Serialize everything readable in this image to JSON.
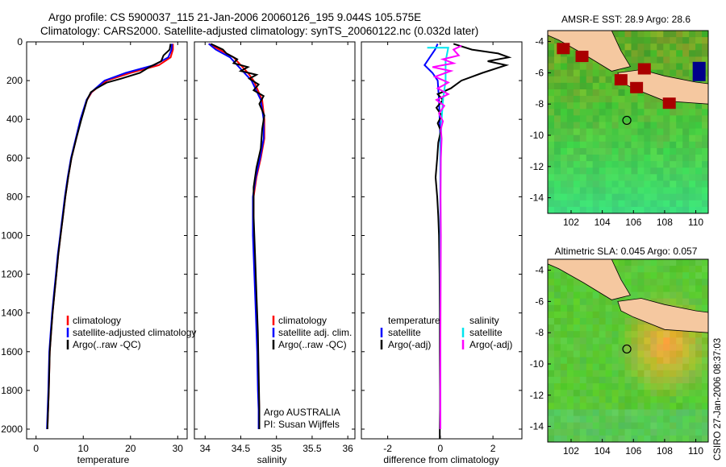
{
  "header": {
    "line1": "Argo profile: CS 5900037_115 21-Jan-2006 20060126_195 9.044S 105.575E",
    "line2": "Climatology: CARS2000. Satellite-adjusted climatology: synTS_20060122.nc (0.032d later)"
  },
  "side_stamp": "CSIRO 27-Jan-2006 08:37:03",
  "colors": {
    "climatology": "#ff0000",
    "satellite": "#0000ff",
    "argo": "#000000",
    "satellite_diff": "#00e5ee",
    "argo_adj_diff": "#ff00ff",
    "land": "#f5c8a0",
    "ocean_green": "#33cc33"
  },
  "chart_data": [
    {
      "type": "line",
      "id": "temperature",
      "xlabel": "temperature",
      "ylabel": "",
      "xlim": [
        -2,
        32
      ],
      "ylim": [
        2050,
        0
      ],
      "xticks": [
        0,
        10,
        20,
        30
      ],
      "yticks": [
        0,
        200,
        400,
        600,
        800,
        1000,
        1200,
        1400,
        1600,
        1800,
        2000
      ],
      "legend": [
        "climatology",
        "satellite-adjusted climatology",
        "Argo(..raw -QC)"
      ],
      "series": [
        {
          "name": "climatology",
          "color": "#ff0000",
          "x": [
            29.0,
            29.0,
            28.5,
            26,
            20,
            15,
            12.8,
            11.8,
            10.8,
            9.5,
            8.5,
            7.5,
            6.8,
            6.2,
            5.7,
            5.2,
            4.7,
            4.3,
            3.9,
            3.5,
            3.2,
            2.9,
            2.7,
            2.4
          ],
          "y": [
            10,
            40,
            80,
            120,
            160,
            200,
            240,
            260,
            300,
            400,
            500,
            600,
            700,
            800,
            900,
            1000,
            1100,
            1200,
            1300,
            1400,
            1500,
            1600,
            1800,
            2000
          ]
        },
        {
          "name": "satellite-adjusted climatology",
          "color": "#0000ff",
          "x": [
            28.8,
            28.7,
            28.0,
            25,
            19,
            14.5,
            12.6,
            11.7,
            10.7,
            9.4,
            8.4,
            7.4,
            6.7,
            6.1,
            5.6,
            5.1,
            4.6,
            4.2,
            3.8,
            3.4,
            3.1,
            2.8,
            2.6,
            2.3
          ],
          "y": [
            10,
            40,
            80,
            120,
            160,
            200,
            240,
            260,
            300,
            400,
            500,
            600,
            700,
            800,
            900,
            1000,
            1100,
            1200,
            1300,
            1400,
            1500,
            1600,
            1800,
            2000
          ]
        },
        {
          "name": "Argo(..raw -QC)",
          "color": "#000000",
          "x": [
            28.5,
            28.3,
            27,
            26.5,
            24,
            22,
            18,
            15,
            12.8,
            11.6,
            10.8,
            9.6,
            8.5,
            7.5,
            6.8,
            6.2,
            5.7,
            5.2,
            4.7,
            4.3,
            3.9,
            3.5,
            3.2,
            2.9,
            2.7,
            2.4
          ],
          "y": [
            10,
            40,
            70,
            100,
            130,
            160,
            190,
            210,
            240,
            260,
            300,
            400,
            500,
            600,
            700,
            800,
            900,
            1000,
            1100,
            1200,
            1300,
            1400,
            1500,
            1600,
            1800,
            2000
          ]
        }
      ]
    },
    {
      "type": "line",
      "id": "salinity",
      "xlabel": "salinity",
      "xlim": [
        33.85,
        36.1
      ],
      "ylim": [
        2050,
        0
      ],
      "xticks": [
        34,
        34.5,
        35,
        35.5,
        36
      ],
      "legend": [
        "climatology",
        "satellite adj. clim.",
        "Argo(..raw -QC)"
      ],
      "series": [
        {
          "name": "climatology",
          "color": "#ff0000",
          "x": [
            34.05,
            34.2,
            34.4,
            34.5,
            34.6,
            34.68,
            34.8,
            34.83,
            34.83,
            34.78,
            34.72,
            34.68,
            34.68,
            34.7,
            34.72,
            34.74,
            34.75,
            34.76,
            34.76
          ],
          "y": [
            10,
            40,
            80,
            120,
            160,
            200,
            300,
            400,
            500,
            600,
            700,
            800,
            1000,
            1200,
            1400,
            1600,
            1800,
            1900,
            2000
          ]
        },
        {
          "name": "satellite adj. clim.",
          "color": "#0000ff",
          "x": [
            34.05,
            34.15,
            34.35,
            34.45,
            34.55,
            34.65,
            34.78,
            34.82,
            34.82,
            34.77,
            34.71,
            34.67,
            34.67,
            34.69,
            34.71,
            34.73,
            34.74,
            34.75,
            34.75
          ],
          "y": [
            10,
            40,
            80,
            120,
            160,
            200,
            300,
            400,
            500,
            600,
            700,
            800,
            1000,
            1200,
            1400,
            1600,
            1800,
            1900,
            2000
          ]
        },
        {
          "name": "Argo(..raw -QC)",
          "color": "#000000",
          "x": [
            34.08,
            34.25,
            34.3,
            34.45,
            34.4,
            34.6,
            34.5,
            34.72,
            34.62,
            34.75,
            34.68,
            34.82,
            34.76,
            34.83,
            34.8,
            34.78,
            34.72,
            34.68,
            34.68,
            34.7,
            34.72,
            34.74,
            34.75,
            34.76,
            34.76
          ],
          "y": [
            10,
            40,
            60,
            90,
            110,
            130,
            150,
            170,
            190,
            220,
            250,
            280,
            320,
            380,
            450,
            550,
            650,
            750,
            900,
            1100,
            1300,
            1500,
            1700,
            1900,
            2000
          ]
        }
      ]
    },
    {
      "type": "line",
      "id": "difference",
      "xlabel": "difference from climatology",
      "xlim": [
        -3,
        3.1
      ],
      "ylim": [
        2050,
        0
      ],
      "xticks": [
        -2,
        0,
        2
      ],
      "legend_temperature": [
        "temperature",
        "satellite",
        "Argo(-adj)"
      ],
      "legend_salinity": [
        "salinity",
        "satellite",
        "Argo(-adj)"
      ],
      "series": [
        {
          "name": "temperature satellite",
          "color": "#0000ff",
          "x": [
            -0.1,
            -0.2,
            -0.4,
            -0.6,
            -0.3,
            -0.1,
            -0.05,
            0,
            0,
            0
          ],
          "y": [
            10,
            40,
            80,
            120,
            160,
            200,
            300,
            500,
            1000,
            2000
          ]
        },
        {
          "name": "temperature Argo(-adj)",
          "color": "#000000",
          "x": [
            0.5,
            1.2,
            2.2,
            2.6,
            1.8,
            2.5,
            1.6,
            0.8,
            0.4,
            -0.1,
            0.1,
            -0.15,
            0.05,
            -0.1,
            0.02,
            -0.08,
            -0.12,
            -0.18,
            -0.12,
            -0.08,
            -0.05,
            -0.03,
            -0.02,
            -0.02,
            -0.01,
            -0.01,
            -0.02,
            -0.02
          ],
          "y": [
            10,
            40,
            60,
            80,
            100,
            120,
            160,
            200,
            240,
            270,
            300,
            340,
            380,
            420,
            460,
            520,
            600,
            700,
            800,
            900,
            1000,
            1200,
            1400,
            1600,
            1800,
            1900,
            2000,
            2050
          ]
        },
        {
          "name": "salinity satellite",
          "color": "#00e5ee",
          "x": [
            -0.5,
            0.3,
            0.2,
            0.2,
            0.1,
            0.05,
            0.02,
            0,
            0,
            0,
            0,
            0
          ],
          "y": [
            30,
            30,
            100,
            200,
            300,
            400,
            500,
            600,
            1000,
            1400,
            1800,
            2000
          ]
        },
        {
          "name": "salinity Argo(-adj)",
          "color": "#ff00ff",
          "x": [
            0.8,
            0.5,
            0.7,
            0.1,
            0.5,
            -0.3,
            0.4,
            -0.2,
            0.3,
            -0.1,
            0.3,
            -0.15,
            0.15,
            -0.05,
            0.1,
            0.02,
            0.05,
            0.02,
            0.01,
            0.02,
            0.01,
            0.0,
            0.0
          ],
          "y": [
            20,
            40,
            70,
            90,
            110,
            130,
            150,
            180,
            210,
            240,
            270,
            300,
            330,
            370,
            410,
            450,
            500,
            600,
            800,
            1000,
            1300,
            1600,
            2000
          ]
        }
      ]
    },
    {
      "type": "heatmap",
      "id": "sst_map",
      "title": "AMSR-E SST: 28.9 Argo: 28.6",
      "xticks": [
        102,
        104,
        106,
        108,
        110
      ],
      "yticks": [
        -4,
        -6,
        -8,
        -10,
        -12,
        -14
      ],
      "xlim": [
        100.5,
        110.8
      ],
      "ylim": [
        -15,
        -3.3
      ],
      "argo_position": [
        105.575,
        -9.044
      ]
    },
    {
      "type": "heatmap",
      "id": "sla_map",
      "title": "Altimetric SLA: 0.045 Argo: 0.057",
      "xticks": [
        102,
        104,
        106,
        108,
        110
      ],
      "yticks": [
        -4,
        -6,
        -8,
        -10,
        -12,
        -14
      ],
      "xlim": [
        100.5,
        110.8
      ],
      "ylim": [
        -15,
        -3.3
      ],
      "argo_position": [
        105.575,
        -9.044
      ]
    }
  ],
  "panels": {
    "salinity_note1": "Argo AUSTRALIA",
    "salinity_note2": "PI: Susan Wijffels"
  }
}
